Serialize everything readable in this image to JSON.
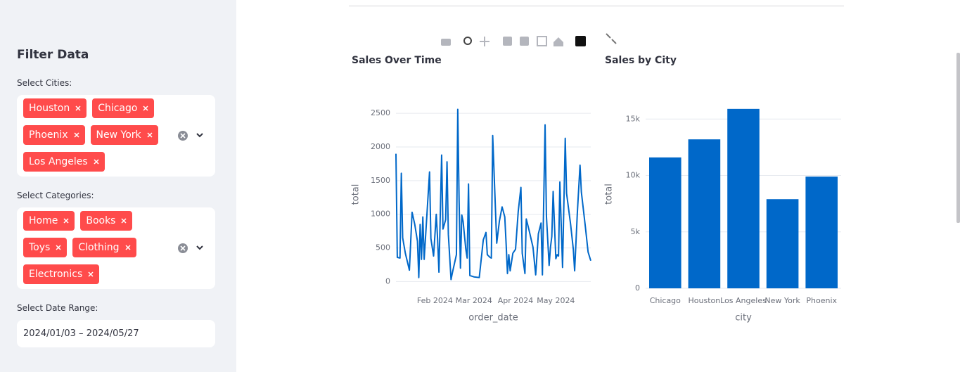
{
  "sidebar": {
    "title": "Filter Data",
    "cities_label": "Select Cities:",
    "cities": [
      "Houston",
      "Chicago",
      "Phoenix",
      "New York",
      "Los Angeles"
    ],
    "categories_label": "Select Categories:",
    "categories": [
      "Home",
      "Books",
      "Toys",
      "Clothing",
      "Electronics"
    ],
    "date_label": "Select Date Range:",
    "date_range": "2024/01/03 – 2024/05/27"
  },
  "chart_data": [
    {
      "type": "line",
      "title": "Sales Over Time",
      "x_label": "order_date",
      "y_label": "total",
      "color": "#0068c9",
      "grid": true,
      "x": [
        "2024-01-03",
        "2024-01-04",
        "2024-01-06",
        "2024-01-07",
        "2024-01-08",
        "2024-01-10",
        "2024-01-13",
        "2024-01-15",
        "2024-01-17",
        "2024-01-19",
        "2024-01-20",
        "2024-01-21",
        "2024-01-22",
        "2024-01-23",
        "2024-01-24",
        "2024-01-28",
        "2024-01-29",
        "2024-01-31",
        "2024-02-02",
        "2024-02-03",
        "2024-02-04",
        "2024-02-06",
        "2024-02-07",
        "2024-02-09",
        "2024-02-10",
        "2024-02-11",
        "2024-02-13",
        "2024-02-14",
        "2024-02-17",
        "2024-02-18",
        "2024-02-19",
        "2024-02-20",
        "2024-02-21",
        "2024-02-22",
        "2024-02-24",
        "2024-02-25",
        "2024-02-26",
        "2024-02-27",
        "2024-03-01",
        "2024-03-05",
        "2024-03-08",
        "2024-03-10",
        "2024-03-11",
        "2024-03-13",
        "2024-03-14",
        "2024-03-15",
        "2024-03-18",
        "2024-03-20",
        "2024-03-22",
        "2024-03-24",
        "2024-03-25",
        "2024-03-26",
        "2024-03-27",
        "2024-03-28",
        "2024-03-30",
        "2024-04-01",
        "2024-04-03",
        "2024-04-05",
        "2024-04-06",
        "2024-04-08",
        "2024-04-09",
        "2024-04-11",
        "2024-04-14",
        "2024-04-16",
        "2024-04-18",
        "2024-04-20",
        "2024-04-21",
        "2024-04-23",
        "2024-04-24",
        "2024-04-26",
        "2024-04-27",
        "2024-04-28",
        "2024-04-29",
        "2024-05-01",
        "2024-05-02",
        "2024-05-03",
        "2024-05-04",
        "2024-05-06",
        "2024-05-08",
        "2024-05-09",
        "2024-05-12",
        "2024-05-14",
        "2024-05-15",
        "2024-05-17",
        "2024-05-19",
        "2024-05-20",
        "2024-05-23",
        "2024-05-25",
        "2024-05-27"
      ],
      "values": [
        1900,
        360,
        350,
        1610,
        650,
        420,
        170,
        1030,
        850,
        600,
        60,
        850,
        330,
        960,
        330,
        1630,
        640,
        380,
        1000,
        630,
        140,
        1880,
        780,
        920,
        1780,
        700,
        30,
        130,
        400,
        2560,
        1200,
        200,
        990,
        890,
        480,
        350,
        1450,
        90,
        70,
        60,
        620,
        730,
        400,
        360,
        350,
        2170,
        570,
        900,
        1110,
        960,
        560,
        120,
        400,
        160,
        420,
        480,
        1040,
        1400,
        420,
        120,
        930,
        770,
        510,
        100,
        710,
        870,
        100,
        2330,
        970,
        240,
        510,
        670,
        1340,
        340,
        400,
        380,
        1480,
        210,
        2130,
        1310,
        850,
        480,
        160,
        1020,
        1730,
        1330,
        810,
        440,
        310
      ],
      "xlim": [
        "2024-01-03",
        "2024-05-27"
      ],
      "xticks": [
        {
          "value": "2024-02-01",
          "label": "Feb 2024"
        },
        {
          "value": "2024-03-01",
          "label": "Mar 2024"
        },
        {
          "value": "2024-04-01",
          "label": "Apr 2024"
        },
        {
          "value": "2024-05-01",
          "label": "May 2024"
        }
      ],
      "ylim": [
        -100,
        2690
      ],
      "yticks": [
        0,
        500,
        1000,
        1500,
        2000,
        2500
      ]
    },
    {
      "type": "bar",
      "title": "Sales by City",
      "x_label": "city",
      "y_label": "total",
      "color": "#0068c9",
      "grid": true,
      "categories": [
        "Chicago",
        "Houston",
        "Los Angeles",
        "New York",
        "Phoenix"
      ],
      "values": [
        11600,
        13200,
        15900,
        7900,
        9900
      ],
      "ylim": [
        0,
        16700
      ],
      "yticks": [
        0,
        {
          "value": 5000,
          "label": "5k"
        },
        {
          "value": 10000,
          "label": "10k"
        },
        {
          "value": 15000,
          "label": "15k"
        }
      ]
    }
  ]
}
